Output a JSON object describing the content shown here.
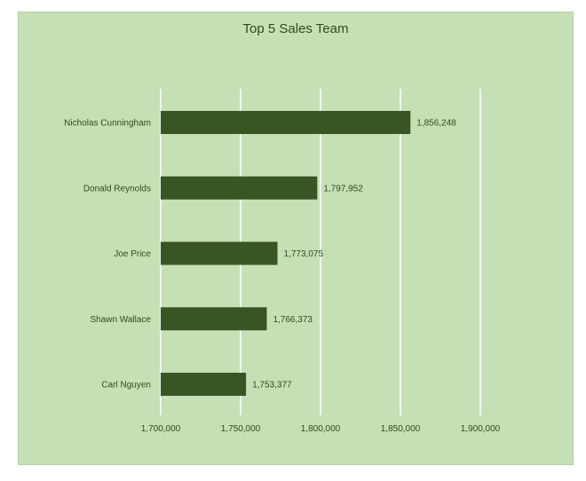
{
  "chart_data": {
    "type": "bar",
    "orientation": "horizontal",
    "title": "Top 5 Sales Team",
    "categories": [
      "Nicholas Cunningham",
      "Donald Reynolds",
      "Joe Price",
      "Shawn Wallace",
      "Carl Nguyen"
    ],
    "values": [
      1856248,
      1797952,
      1773075,
      1766373,
      1753377
    ],
    "value_labels": [
      "1,856,248",
      "1,797,952",
      "1,773,075",
      "1,766,373",
      "1,753,377"
    ],
    "xlim": [
      1700000,
      1900000
    ],
    "x_ticks": [
      1700000,
      1750000,
      1800000,
      1850000,
      1900000
    ],
    "x_tick_labels": [
      "1,700,000",
      "1,750,000",
      "1,800,000",
      "1,850,000",
      "1,900,000"
    ],
    "grid": true,
    "legend": "none",
    "colors": {
      "background": "#c5e0b4",
      "bar": "#375623",
      "gridline": "#ffffff",
      "text": "#2f4a22"
    }
  }
}
